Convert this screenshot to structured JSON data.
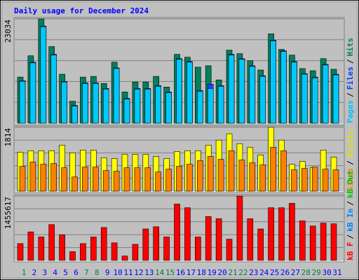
{
  "title": "Daily usage for December 2024",
  "chart_data": [
    {
      "type": "bar",
      "ylim": [
        0,
        23034
      ],
      "yticks": [
        23034
      ],
      "series": [
        {
          "name": "Pages",
          "color": "#00c8ff",
          "text_color": "#00c0ff",
          "values": [
            9245,
            13320,
            21311,
            15043,
            9089,
            3761,
            8775,
            8775,
            7522,
            12066,
            5328,
            7522,
            7522,
            8148,
            6738,
            14103,
            13476,
            7052,
            7678,
            8148,
            15043,
            14103,
            12536,
            10342,
            18177,
            15827,
            13476,
            10812,
            10029,
            12849,
            10656
          ]
        },
        {
          "name": "Files",
          "color": "#2040ff",
          "text_color": "#0040ff",
          "values": [
            9395,
            13470,
            21461,
            15193,
            9239,
            3911,
            8925,
            8925,
            7672,
            12216,
            5478,
            7672,
            7672,
            8298,
            6888,
            14253,
            13626,
            7202,
            8618,
            8298,
            15193,
            14253,
            12686,
            10492,
            18327,
            15977,
            13626,
            10962,
            10179,
            12999,
            10806
          ]
        },
        {
          "name": "Hits",
          "color": "#00805c",
          "text_color": "#00805c",
          "values": [
            10185,
            14887,
            23034,
            16923,
            10812,
            4858,
            10185,
            10342,
            8775,
            13476,
            6895,
            9088,
            9088,
            10342,
            7991,
            15200,
            14573,
            12379,
            12692,
            9558,
            16140,
            15357,
            13789,
            11752,
            19744,
            16296,
            15043,
            12066,
            11596,
            14260,
            11909
          ]
        }
      ]
    },
    {
      "type": "bar",
      "ylim": [
        0,
        1814
      ],
      "yticks": [
        1814
      ],
      "series": [
        {
          "name": "Sites",
          "color": "#ff8000",
          "text_color": "#ff8000",
          "values": [
            706,
            827,
            766,
            786,
            665,
            403,
            685,
            685,
            585,
            564,
            665,
            665,
            665,
            544,
            625,
            706,
            766,
            867,
            988,
            907,
            1149,
            887,
            806,
            746,
            1250,
            1149,
            605,
            645,
            685,
            625,
            605
          ]
        },
        {
          "name": "Visits",
          "color": "#ffff00",
          "text_color": "#e0e000",
          "values": [
            1109,
            1149,
            1149,
            1149,
            1310,
            1089,
            1169,
            1169,
            948,
            927,
            1048,
            1048,
            1048,
            988,
            927,
            1129,
            1149,
            1149,
            1310,
            1452,
            1633,
            1351,
            1250,
            1028,
            1814,
            1452,
            766,
            847,
            665,
            1169,
            968
          ]
        }
      ]
    },
    {
      "type": "bar",
      "ylim": [
        0,
        1455617
      ],
      "yticks": [
        1455617
      ],
      "series": [
        {
          "name": "kB F",
          "color": "#ff0000",
          "text_color": "#ff0000",
          "values": [
            380443,
            645099,
            529312,
            810509,
            578935,
            198492,
            380443,
            529312,
            744345,
            396984,
            99246,
            363902,
            711263,
            760886,
            529312,
            1273657,
            1190952,
            529312,
            992460,
            942837,
            479689,
            1455617,
            942837,
            711263,
            1190952,
            1190952,
            1290198,
            893214,
            777427,
            843591,
            827050
          ]
        },
        {
          "name": "kB In",
          "text_color": "#0080ff"
        },
        {
          "name": "kB Out",
          "text_color": "#00c000"
        }
      ],
      "categories": [
        "1",
        "2",
        "3",
        "4",
        "5",
        "6",
        "7",
        "8",
        "9",
        "10",
        "11",
        "12",
        "13",
        "14",
        "15",
        "16",
        "17",
        "18",
        "19",
        "20",
        "21",
        "22",
        "23",
        "24",
        "25",
        "26",
        "27",
        "28",
        "29",
        "30",
        "31"
      ],
      "category_colors": [
        "#008040",
        "#0000ff",
        "#0000ff",
        "#0000ff",
        "#0000ff",
        "#0000ff",
        "#008040",
        "#008040",
        "#0000ff",
        "#0000ff",
        "#0000ff",
        "#0000ff",
        "#0000ff",
        "#008040",
        "#008040",
        "#0000ff",
        "#0000ff",
        "#0000ff",
        "#0000ff",
        "#0000ff",
        "#008040",
        "#008040",
        "#0000ff",
        "#0000ff",
        "#0000ff",
        "#0000ff",
        "#0000ff",
        "#008040",
        "#008040",
        "#0000ff",
        "#0000ff"
      ]
    }
  ],
  "legend_separator": "/"
}
